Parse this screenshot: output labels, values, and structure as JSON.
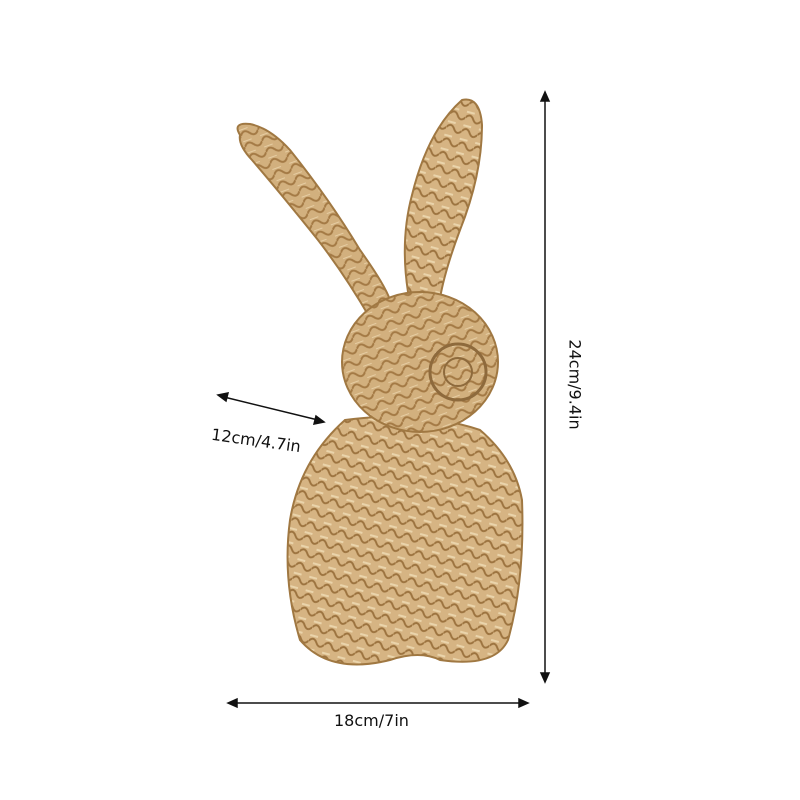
{
  "product": {
    "description_visible": "",
    "colors": {
      "straw_light": "#d9b98a",
      "straw_mid": "#c49a62",
      "straw_dark": "#8e6a3c",
      "arrow": "#111111"
    }
  },
  "dimensions": {
    "height_label": "24cm/9.4in",
    "depth_label": "12cm/4.7in",
    "width_label": "18cm/7in"
  }
}
